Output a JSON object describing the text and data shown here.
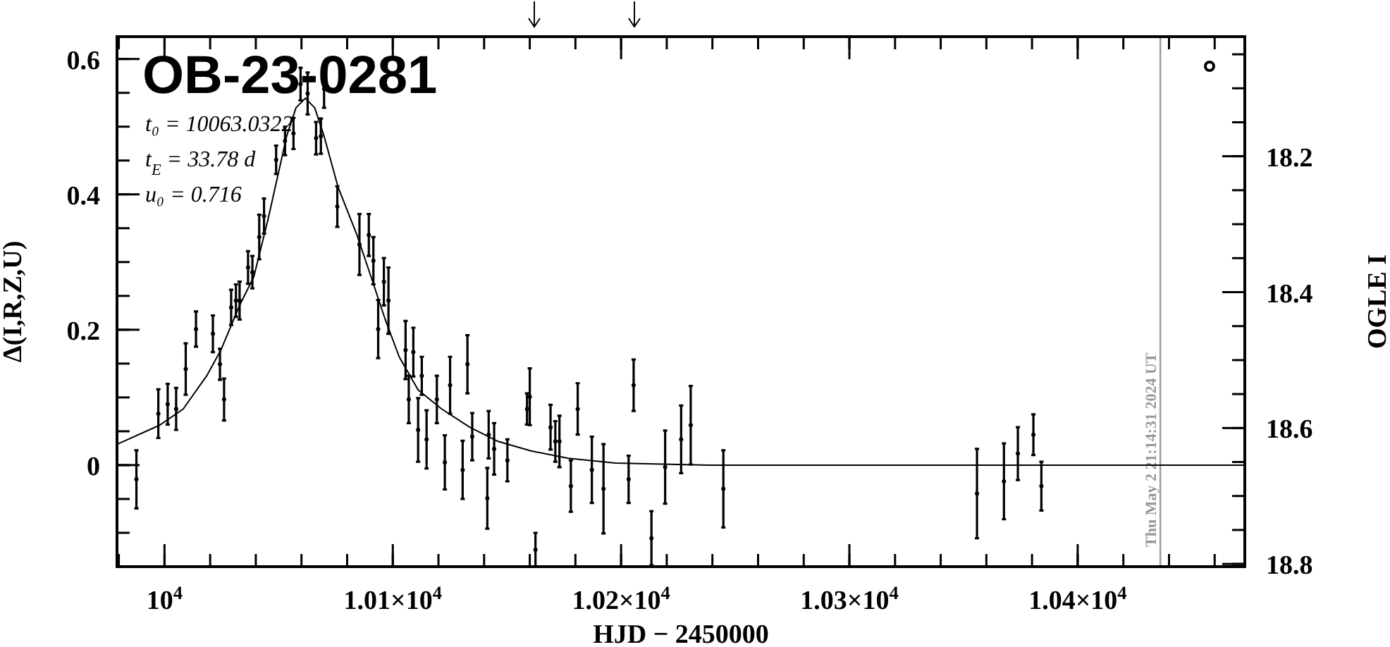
{
  "chart_data": {
    "type": "scatter",
    "title": "OB-23-0281",
    "xlabel": "HJD − 2450000",
    "ylabel": "Δ(I,R,Z,U)",
    "y2label": "OGLE I",
    "annotations": [
      "t₀ = 10063.0322",
      "t$_{E}$ = 33.78 d",
      "u₀ = 0.716",
      "Thu May  2 21:14:31 2024 UT"
    ],
    "xlim": [
      9979.2,
      10473.2
    ],
    "xticks": [
      {
        "value": 10000,
        "label": "10$^{4}$"
      },
      {
        "value": 10100,
        "label": "1.01×10$^{4}$"
      },
      {
        "value": 10200,
        "label": "1.02×10$^{4}$"
      },
      {
        "value": 10300,
        "label": "1.03×10$^{4}$"
      },
      {
        "value": 10400,
        "label": "1.04×10$^{4}$"
      }
    ],
    "ylim": [
      -0.15,
      0.633
    ],
    "yticks": [
      0,
      0.2,
      0.4,
      0.6
    ],
    "y2lim": [
      18.804,
      18.024
    ],
    "y2ticks": [
      18.2,
      18.4,
      18.6,
      18.8
    ],
    "ref_lines": [
      {
        "axis": "x",
        "value": 10436.2,
        "color": "#999999"
      }
    ],
    "grid": false,
    "marker": "circle",
    "series": [
      {
        "color": "#000000",
        "x": [
          9987.7,
          9997.3,
          10001.4,
          10005.1,
          10009.3,
          10013.8,
          10021.2,
          10024.3,
          10026.1,
          10029.2,
          10031.3,
          10032.9,
          10036.6,
          10038.5,
          10041.5,
          10043.6,
          10048.9,
          10052.8,
          10056.5,
          10059.6,
          10062.7,
          10066.4,
          10068.5,
          10069.9,
          10075.7,
          10085.4,
          10089.5,
          10091.5,
          10093.6,
          10096.1,
          10098.1,
          10105.6,
          10107,
          10109,
          10111.1,
          10112.7,
          10114.8,
          10119.3,
          10122.8,
          10125.1,
          10130.6,
          10132.7,
          10134.8,
          10141.4,
          10142,
          10144.4,
          10150.2,
          10158.8,
          10162.5,
          10160,
          10169.1,
          10171.2,
          10173,
          10178,
          10181,
          10187.2,
          10192.3,
          10203.3,
          10205.5,
          10213.3,
          10219.3,
          10226.3,
          10230.5,
          10244.8,
          10355.9,
          10367.7,
          10373.8,
          10380.6,
          10384.1
        ],
        "values": [
          -0.021,
          0.076,
          0.09,
          0.083,
          0.142,
          0.201,
          0.194,
          0.149,
          0.097,
          0.233,
          0.243,
          0.243,
          0.292,
          0.285,
          0.337,
          0.368,
          0.451,
          0.479,
          0.49,
          0.563,
          0.549,
          0.483,
          0.486,
          0.556,
          0.382,
          0.326,
          0.34,
          0.302,
          0.201,
          0.271,
          0.243,
          0.17,
          0.097,
          0.167,
          0.052,
          0.132,
          0.038,
          0.097,
          0.004,
          0.118,
          -0.007,
          0.149,
          0.042,
          -0.049,
          0.045,
          0.024,
          0.007,
          0.083,
          -0.125,
          0.101,
          0.056,
          0.035,
          0.035,
          -0.031,
          0.083,
          -0.007,
          -0.035,
          -0.021,
          0.118,
          -0.108,
          -0.003,
          0.038,
          0.059,
          -0.035,
          -0.042,
          -0.024,
          0.017,
          0.045,
          -0.031
        ],
        "errors": [
          0.043,
          0.036,
          0.03,
          0.031,
          0.038,
          0.026,
          0.027,
          0.023,
          0.031,
          0.026,
          0.024,
          0.028,
          0.024,
          0.024,
          0.033,
          0.026,
          0.021,
          0.021,
          0.023,
          0.024,
          0.031,
          0.024,
          0.026,
          0.028,
          0.03,
          0.045,
          0.031,
          0.035,
          0.043,
          0.035,
          0.049,
          0.043,
          0.035,
          0.036,
          0.047,
          0.028,
          0.043,
          0.035,
          0.04,
          0.042,
          0.043,
          0.043,
          0.035,
          0.045,
          0.035,
          0.038,
          0.031,
          0.023,
          0.025,
          0.042,
          0.033,
          0.03,
          0.038,
          0.038,
          0.038,
          0.049,
          0.066,
          0.035,
          0.038,
          0.04,
          0.054,
          0.05,
          0.058,
          0.057,
          0.066,
          0.056,
          0.039,
          0.03,
          0.036
        ]
      },
      {
        "type": "line",
        "color": "#000000",
        "line_style": "solid",
        "marker": "none",
        "x": [
          9979.4,
          9997.9,
          10008.2,
          10018.5,
          10024.7,
          10032.9,
          10039.1,
          10045.2,
          10049.4,
          10053.5,
          10057.6,
          10061.7,
          10065.8,
          10069.9,
          10076.1,
          10084.3,
          10090.5,
          10096.7,
          10102.8,
          10111.1,
          10121.4,
          10133.7,
          10146.1,
          10160.5,
          10176.9,
          10197.5,
          10238.5,
          10473.2
        ],
        "values": [
          0.031,
          0.059,
          0.083,
          0.132,
          0.17,
          0.236,
          0.278,
          0.361,
          0.424,
          0.486,
          0.528,
          0.542,
          0.528,
          0.486,
          0.41,
          0.34,
          0.278,
          0.215,
          0.16,
          0.111,
          0.083,
          0.056,
          0.035,
          0.021,
          0.01,
          0.003,
          0,
          0
        ]
      }
    ]
  }
}
